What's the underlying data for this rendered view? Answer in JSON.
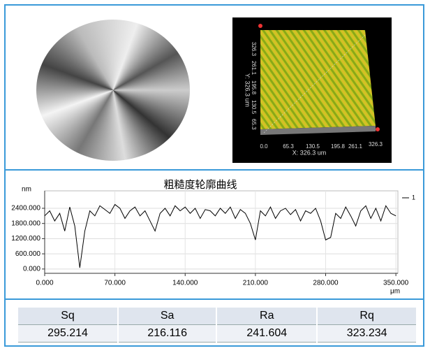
{
  "surface_view": {
    "x_label": "X: 326.3 um",
    "y_label": "Y: 326.3 um",
    "x_ticks": [
      "0.0",
      "65.3",
      "130.5",
      "195.8",
      "261.1",
      "326.3"
    ],
    "y_ticks": [
      "65.3",
      "130.5",
      "195.8",
      "261.1",
      "326.3"
    ]
  },
  "chart_data": {
    "type": "line",
    "title": "粗糙度轮廓曲线",
    "y_label": "nm",
    "x_label": "μm",
    "x": [
      0,
      5,
      10,
      15,
      20,
      25,
      30,
      35,
      40,
      45,
      50,
      55,
      60,
      65,
      70,
      75,
      80,
      85,
      90,
      95,
      100,
      105,
      110,
      115,
      120,
      125,
      130,
      135,
      140,
      145,
      150,
      155,
      160,
      165,
      170,
      175,
      180,
      185,
      190,
      195,
      200,
      205,
      210,
      215,
      220,
      225,
      230,
      235,
      240,
      245,
      250,
      255,
      260,
      265,
      270,
      275,
      280,
      285,
      290,
      295,
      300,
      305,
      310,
      315,
      320,
      325,
      330,
      335,
      340,
      345,
      350
    ],
    "series": [
      {
        "name": "1",
        "color": "#000000",
        "values": [
          2100,
          2300,
          1900,
          2200,
          1500,
          2450,
          1700,
          50,
          1500,
          2300,
          2100,
          2500,
          2350,
          2200,
          2550,
          2400,
          2000,
          2300,
          2450,
          2100,
          2300,
          1900,
          1500,
          2200,
          2400,
          2100,
          2500,
          2300,
          2450,
          2200,
          2400,
          2000,
          2350,
          2300,
          2100,
          2400,
          2200,
          2450,
          2000,
          2350,
          2200,
          1800,
          1150,
          2300,
          2100,
          2450,
          2000,
          2300,
          2400,
          2150,
          2350,
          1900,
          2300,
          2200,
          2400,
          1900,
          1150,
          1250,
          2200,
          2000,
          2450,
          2100,
          1700,
          2300,
          2500,
          2000,
          2400,
          1900,
          2500,
          2200,
          2100
        ]
      }
    ],
    "xlim": [
      0,
      352
    ],
    "ylim": [
      -170,
      3090
    ],
    "xticks": [
      {
        "value": 0,
        "label": "0.000"
      },
      {
        "value": 70,
        "label": "70.000"
      },
      {
        "value": 140,
        "label": "140.000"
      },
      {
        "value": 210,
        "label": "210.000"
      },
      {
        "value": 280,
        "label": "280.000"
      },
      {
        "value": 350,
        "label": "350.000"
      }
    ],
    "yticks": [
      {
        "value": 0,
        "label": "0.000"
      },
      {
        "value": 600,
        "label": "600.000"
      },
      {
        "value": 1200,
        "label": "1200.000"
      },
      {
        "value": 1800,
        "label": "1800.000"
      },
      {
        "value": 2400,
        "label": "2400.000"
      }
    ],
    "grid": true,
    "legend": "top-right"
  },
  "table": {
    "header": [
      "Sq",
      "Sa",
      "Ra",
      "Rq"
    ],
    "rows": [
      [
        295.214,
        216.116,
        241.604,
        323.234
      ]
    ]
  }
}
